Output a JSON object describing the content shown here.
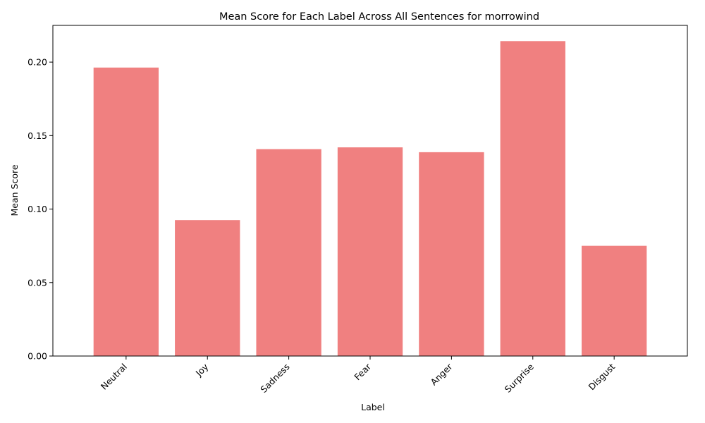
{
  "chart_data": {
    "type": "bar",
    "title": "Mean Score for Each Label Across All Sentences for morrowind",
    "xlabel": "Label",
    "ylabel": "Mean Score",
    "categories": [
      "Neutral",
      "Joy",
      "Sadness",
      "Fear",
      "Anger",
      "Surprise",
      "Disgust"
    ],
    "values": [
      0.1963,
      0.0925,
      0.1408,
      0.142,
      0.1387,
      0.2143,
      0.075
    ],
    "ylim": [
      0,
      0.225
    ],
    "yticks": [
      "0.00",
      "0.05",
      "0.10",
      "0.15",
      "0.20"
    ],
    "grid": false,
    "bar_color": "#f08080"
  }
}
